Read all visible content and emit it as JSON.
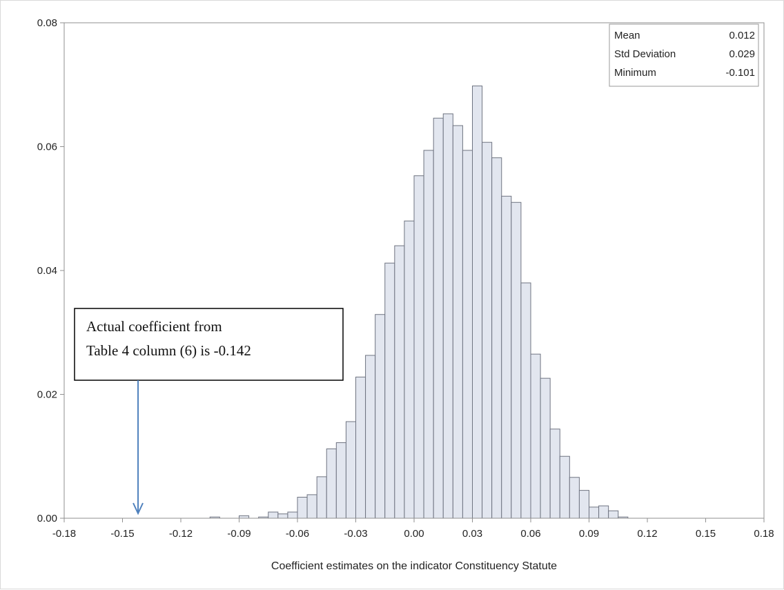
{
  "chart_data": {
    "type": "bar",
    "subtype": "histogram",
    "title": "",
    "xlabel": "Coefficient estimates on the indicator Constituency Statute",
    "ylabel": "",
    "xlim": [
      -0.18,
      0.18
    ],
    "ylim": [
      0,
      0.08
    ],
    "x_ticks": [
      "-0.18",
      "-0.15",
      "-0.12",
      "-0.09",
      "-0.06",
      "-0.03",
      "0.00",
      "0.03",
      "0.06",
      "0.09",
      "0.12",
      "0.15",
      "0.18"
    ],
    "y_ticks": [
      "0.00",
      "0.02",
      "0.04",
      "0.06",
      "0.08"
    ],
    "bin_width": 0.005,
    "bin_starts": [
      -0.105,
      -0.1,
      -0.095,
      -0.09,
      -0.085,
      -0.08,
      -0.075,
      -0.07,
      -0.065,
      -0.06,
      -0.055,
      -0.05,
      -0.045,
      -0.04,
      -0.035,
      -0.03,
      -0.025,
      -0.02,
      -0.015,
      -0.01,
      -0.005,
      0.0,
      0.005,
      0.01,
      0.015,
      0.02,
      0.025,
      0.03,
      0.035,
      0.04,
      0.045,
      0.05,
      0.055,
      0.06,
      0.065,
      0.07,
      0.075,
      0.08,
      0.085,
      0.09,
      0.095,
      0.1,
      0.105
    ],
    "values": [
      0.0002,
      0.0,
      0.0,
      0.0004,
      0.0,
      0.0002,
      0.001,
      0.0007,
      0.001,
      0.0034,
      0.0038,
      0.0067,
      0.0112,
      0.0122,
      0.0156,
      0.0228,
      0.0263,
      0.0329,
      0.0412,
      0.044,
      0.048,
      0.0553,
      0.0594,
      0.0646,
      0.0653,
      0.0634,
      0.0594,
      0.0698,
      0.0607,
      0.0582,
      0.052,
      0.051,
      0.038,
      0.0265,
      0.0226,
      0.0144,
      0.01,
      0.0066,
      0.0045,
      0.0018,
      0.002,
      0.0012,
      0.0002
    ],
    "bar_color": "#e2e6ef",
    "bar_edge_color": "#6e7380",
    "grid": false,
    "legend": "none",
    "inset": {
      "placement": "top-right",
      "rows": [
        {
          "label": "Mean",
          "value": "0.012"
        },
        {
          "label": "Std Deviation",
          "value": "0.029"
        },
        {
          "label": "Minimum",
          "value": "-0.101"
        }
      ]
    },
    "annotation": {
      "lines": [
        "Actual coefficient from",
        "Table 4 column (6) is -0.142"
      ],
      "arrow_x": -0.142,
      "arrow_color": "#4f81bd"
    }
  }
}
